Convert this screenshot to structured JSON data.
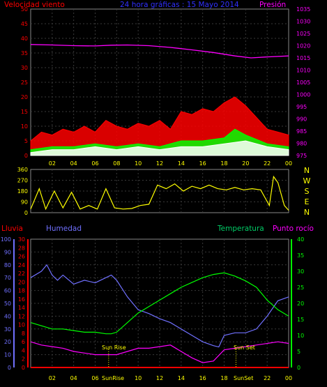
{
  "chart_data": [
    {
      "type": "line",
      "title": "24 hora gráficas : 15 Mayo 2014",
      "left_label": "Velocidad viento",
      "right_label": "Presión",
      "x_ticks": [
        "02",
        "04",
        "06",
        "08",
        "10",
        "12",
        "14",
        "16",
        "18",
        "20",
        "22",
        "00"
      ],
      "y_left_ticks": [
        "0",
        "5",
        "10",
        "15",
        "20",
        "25",
        "30",
        "35",
        "40",
        "45",
        "50"
      ],
      "y_right_ticks": [
        "975",
        "980",
        "985",
        "990",
        "995",
        "1000",
        "1005",
        "1010",
        "1015",
        "1020",
        "1025",
        "1030",
        "1035"
      ],
      "ylim_left": [
        0,
        50
      ],
      "ylim_right": [
        975,
        1035
      ],
      "grid": true,
      "series": [
        {
          "name": "Presión",
          "axis": "right",
          "color": "#ff00ff",
          "x": [
            0,
            2,
            4,
            6,
            7.5,
            9,
            11,
            13,
            15,
            17,
            19,
            20.5,
            22,
            24
          ],
          "values": [
            1020.5,
            1020.3,
            1020,
            1019.9,
            1020.2,
            1020.3,
            1020,
            1019.3,
            1018.3,
            1017.2,
            1015.8,
            1015,
            1015.4,
            1015.8
          ]
        },
        {
          "axis": "left",
          "color": "#ff0000",
          "x": [
            0,
            1,
            2,
            3,
            4,
            5,
            6,
            7,
            8,
            9,
            10,
            11,
            12,
            13,
            14,
            15,
            16,
            17,
            18,
            19,
            20,
            21,
            22,
            23,
            24
          ],
          "values": [
            5,
            8,
            7,
            9,
            8,
            10,
            8,
            12,
            10,
            9,
            11,
            10,
            12,
            9,
            15,
            14,
            16,
            15,
            18,
            20,
            17,
            13,
            9,
            8,
            7
          ]
        },
        {
          "axis": "left",
          "color": "#00ff00",
          "x": [
            0,
            2,
            4,
            6,
            8,
            10,
            12,
            14,
            16,
            18,
            19,
            20,
            22,
            24
          ],
          "values": [
            2,
            3,
            3,
            4,
            3,
            4,
            3,
            5,
            5,
            6,
            9,
            7,
            4,
            3
          ]
        },
        {
          "axis": "left",
          "color": "#ffffff",
          "x": [
            0,
            2,
            4,
            6,
            8,
            10,
            12,
            14,
            16,
            18,
            20,
            22,
            24
          ],
          "values": [
            1,
            2,
            2,
            3,
            2,
            3,
            2,
            3,
            3,
            4,
            5,
            3,
            2
          ]
        }
      ]
    },
    {
      "type": "line",
      "y_ticks": [
        "360",
        "270",
        "180",
        "90",
        "0"
      ],
      "right_labels": [
        "N",
        "W",
        "S",
        "E",
        "N"
      ],
      "ylim": [
        0,
        360
      ],
      "grid": true,
      "series": [
        {
          "color": "#ffff00",
          "x": [
            0,
            0.8,
            1.4,
            2.2,
            3,
            3.8,
            4.6,
            5.4,
            6.2,
            7,
            7.8,
            8.6,
            9.4,
            10.2,
            11,
            11.8,
            12.6,
            13.4,
            14.2,
            15,
            15.8,
            16.6,
            17.4,
            18.2,
            19,
            19.8,
            20.6,
            21.4,
            22.2,
            22.6,
            23,
            23.6,
            24
          ],
          "values": [
            30,
            200,
            30,
            180,
            40,
            170,
            30,
            60,
            30,
            200,
            40,
            30,
            35,
            60,
            70,
            230,
            200,
            240,
            180,
            220,
            200,
            230,
            200,
            190,
            210,
            190,
            200,
            190,
            60,
            300,
            250,
            60,
            20
          ]
        }
      ]
    },
    {
      "type": "line",
      "legend": [
        "Lluvia",
        "Humedad",
        "Temperatura",
        "Punto rocío"
      ],
      "x_ticks": [
        "02",
        "04",
        "06",
        "08",
        "10",
        "12",
        "14",
        "16",
        "18",
        "20",
        "22",
        "00"
      ],
      "y_humedad_ticks": [
        "0",
        "10",
        "20",
        "30",
        "40",
        "50",
        "60",
        "70",
        "80",
        "90",
        "100"
      ],
      "y_lluvia_ticks": [
        "0",
        "2",
        "4",
        "6",
        "8",
        "10",
        "12",
        "14",
        "16",
        "18",
        "20",
        "22",
        "24",
        "26",
        "28",
        "30"
      ],
      "y_temp_ticks": [
        "0",
        "5",
        "10",
        "15",
        "20",
        "25",
        "30",
        "35",
        "40"
      ],
      "ylim_humedad": [
        0,
        100
      ],
      "ylim_temp": [
        0,
        40
      ],
      "annotations": [
        "Sun Rise",
        "Sun Set",
        "SunRise",
        "SunSet"
      ],
      "grid": true,
      "series": [
        {
          "name": "Humedad",
          "axis": "humedad",
          "color": "#7070ff",
          "x": [
            0,
            1,
            1.5,
            2,
            2.5,
            3,
            4,
            5,
            6,
            7,
            7.5,
            8,
            9,
            10,
            11,
            12,
            13,
            14,
            15,
            16,
            17,
            17.5,
            18,
            19,
            20,
            21,
            22,
            23,
            24
          ],
          "values": [
            70,
            75,
            80,
            72,
            68,
            72,
            65,
            68,
            66,
            70,
            72,
            68,
            55,
            45,
            42,
            38,
            35,
            30,
            25,
            20,
            17,
            16,
            25,
            27,
            27,
            30,
            40,
            52,
            55
          ]
        },
        {
          "name": "Temperatura",
          "axis": "temp",
          "color": "#00ff00",
          "x": [
            0,
            1,
            2,
            3,
            4,
            5,
            6,
            7,
            7.5,
            8,
            9,
            10,
            11,
            12,
            13,
            14,
            15,
            16,
            17,
            18,
            19,
            20,
            21,
            22,
            23,
            24
          ],
          "values": [
            14,
            13,
            12,
            12,
            11.5,
            11,
            11,
            10.5,
            10.5,
            11,
            14,
            17,
            19,
            21,
            23,
            25,
            26.5,
            28,
            29,
            29.5,
            28.5,
            27,
            25,
            21,
            18,
            16
          ]
        },
        {
          "name": "Punto rocío",
          "axis": "temp",
          "color": "#ff00ff",
          "x": [
            0,
            1,
            2,
            3,
            4,
            5,
            6,
            7,
            8,
            9,
            10,
            11,
            12,
            13,
            14,
            15,
            16,
            17,
            18,
            19,
            20,
            21,
            22,
            23,
            24
          ],
          "values": [
            8,
            7,
            6.5,
            6,
            5,
            4.5,
            4,
            4,
            4,
            5,
            6,
            6,
            6.5,
            7,
            5,
            3,
            1.5,
            2,
            5.5,
            6,
            6.5,
            7,
            7.5,
            8,
            7.5
          ]
        },
        {
          "name": "Lluvia",
          "axis": "lluvia",
          "color": "#ff0000",
          "x": [
            0,
            24
          ],
          "values": [
            0,
            0
          ]
        }
      ]
    }
  ]
}
